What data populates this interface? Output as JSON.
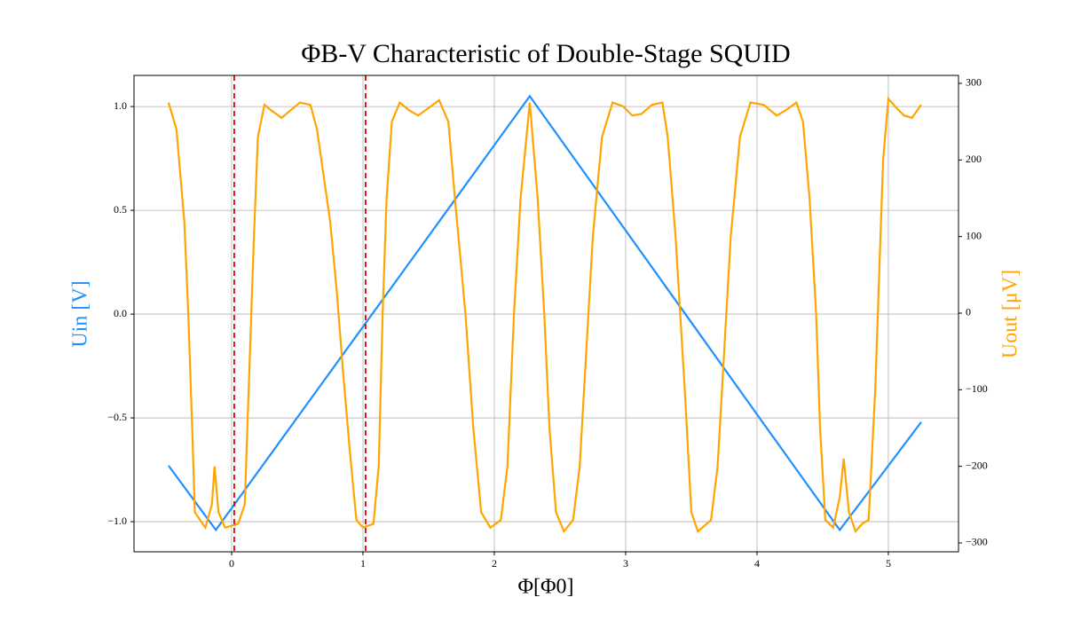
{
  "chart_data": {
    "type": "line",
    "title": "ΦB-V Characteristic of Double-Stage SQUID",
    "xlabel": "Φ[Φ0]",
    "ylabel": "Uin [V]",
    "y2label": "Uout [μV]",
    "xlim": [
      -0.743,
      5.534
    ],
    "xticks": [
      0,
      1,
      2,
      3,
      4,
      5
    ],
    "ylim": [
      -1.145,
      1.15
    ],
    "yticks": [
      {
        "value": -1,
        "label": "−1.0"
      },
      {
        "value": -0.5,
        "label": "−0.5"
      },
      {
        "value": 0,
        "label": "0.0"
      },
      {
        "value": 0.5,
        "label": "0.5"
      },
      {
        "value": 1,
        "label": "1.0"
      }
    ],
    "y2lim": [
      -311.6,
      310.4
    ],
    "y2ticks": [
      {
        "value": -300,
        "label": "−300"
      },
      {
        "value": -200,
        "label": "−200"
      },
      {
        "value": -100,
        "label": "−100"
      },
      0,
      100,
      200,
      300
    ],
    "grid": true,
    "vlines": [
      {
        "x": 0.02,
        "color": "#e00000"
      },
      {
        "x": 1.02,
        "color": "#e00000"
      }
    ],
    "series": [
      {
        "name": "Uin",
        "color": "#1e90ff",
        "axis": "y",
        "x": [
          -0.48,
          -0.12,
          0.5,
          1,
          1.5,
          2,
          2.27,
          2.5,
          3,
          3.5,
          4,
          4.5,
          4.63,
          5,
          5.25
        ],
        "values": [
          -0.73,
          -1.04,
          -0.498,
          -0.061,
          0.376,
          0.814,
          1.05,
          0.846,
          0.403,
          -0.04,
          -0.483,
          -0.925,
          -1.04,
          -0.73,
          -0.52
        ]
      },
      {
        "name": "Uout",
        "color": "#ffa500",
        "axis": "y2",
        "x": [
          -0.48,
          -0.42,
          -0.36,
          -0.33,
          -0.3,
          -0.28,
          -0.2,
          -0.15,
          -0.13,
          -0.1,
          -0.05,
          0.05,
          0.1,
          0.13,
          0.17,
          0.2,
          0.25,
          0.3,
          0.38,
          0.45,
          0.52,
          0.6,
          0.65,
          0.75,
          0.8,
          0.85,
          0.9,
          0.95,
          1.0,
          1.08,
          1.12,
          1.15,
          1.18,
          1.22,
          1.28,
          1.35,
          1.42,
          1.5,
          1.58,
          1.65,
          1.7,
          1.78,
          1.84,
          1.9,
          1.97,
          2.05,
          2.1,
          2.15,
          2.2,
          2.27,
          2.33,
          2.38,
          2.42,
          2.47,
          2.53,
          2.6,
          2.65,
          2.7,
          2.75,
          2.82,
          2.9,
          2.98,
          3.05,
          3.12,
          3.2,
          3.28,
          3.32,
          3.38,
          3.45,
          3.5,
          3.55,
          3.65,
          3.7,
          3.75,
          3.8,
          3.87,
          3.95,
          4.05,
          4.15,
          4.22,
          4.3,
          4.35,
          4.4,
          4.45,
          4.48,
          4.52,
          4.58,
          4.63,
          4.66,
          4.7,
          4.75,
          4.8,
          4.85,
          4.9,
          4.93,
          4.96,
          5.0,
          5.05,
          5.12,
          5.18,
          5.25
        ],
        "values": [
          275,
          240,
          120,
          0,
          -150,
          -260,
          -280,
          -250,
          -200,
          -260,
          -280,
          -275,
          -250,
          -100,
          100,
          230,
          272,
          265,
          255,
          265,
          275,
          272,
          240,
          120,
          30,
          -80,
          -180,
          -270,
          -280,
          -275,
          -200,
          0,
          150,
          250,
          275,
          265,
          258,
          268,
          278,
          250,
          150,
          0,
          -150,
          -260,
          -280,
          -270,
          -200,
          0,
          150,
          275,
          150,
          0,
          -150,
          -260,
          -285,
          -270,
          -200,
          -50,
          100,
          230,
          275,
          270,
          258,
          260,
          272,
          275,
          230,
          100,
          -100,
          -260,
          -285,
          -270,
          -200,
          -50,
          100,
          230,
          275,
          272,
          258,
          265,
          275,
          250,
          150,
          0,
          -150,
          -270,
          -280,
          -240,
          -190,
          -260,
          -285,
          -275,
          -270,
          -100,
          50,
          200,
          280,
          270,
          258,
          255,
          272
        ]
      }
    ]
  }
}
